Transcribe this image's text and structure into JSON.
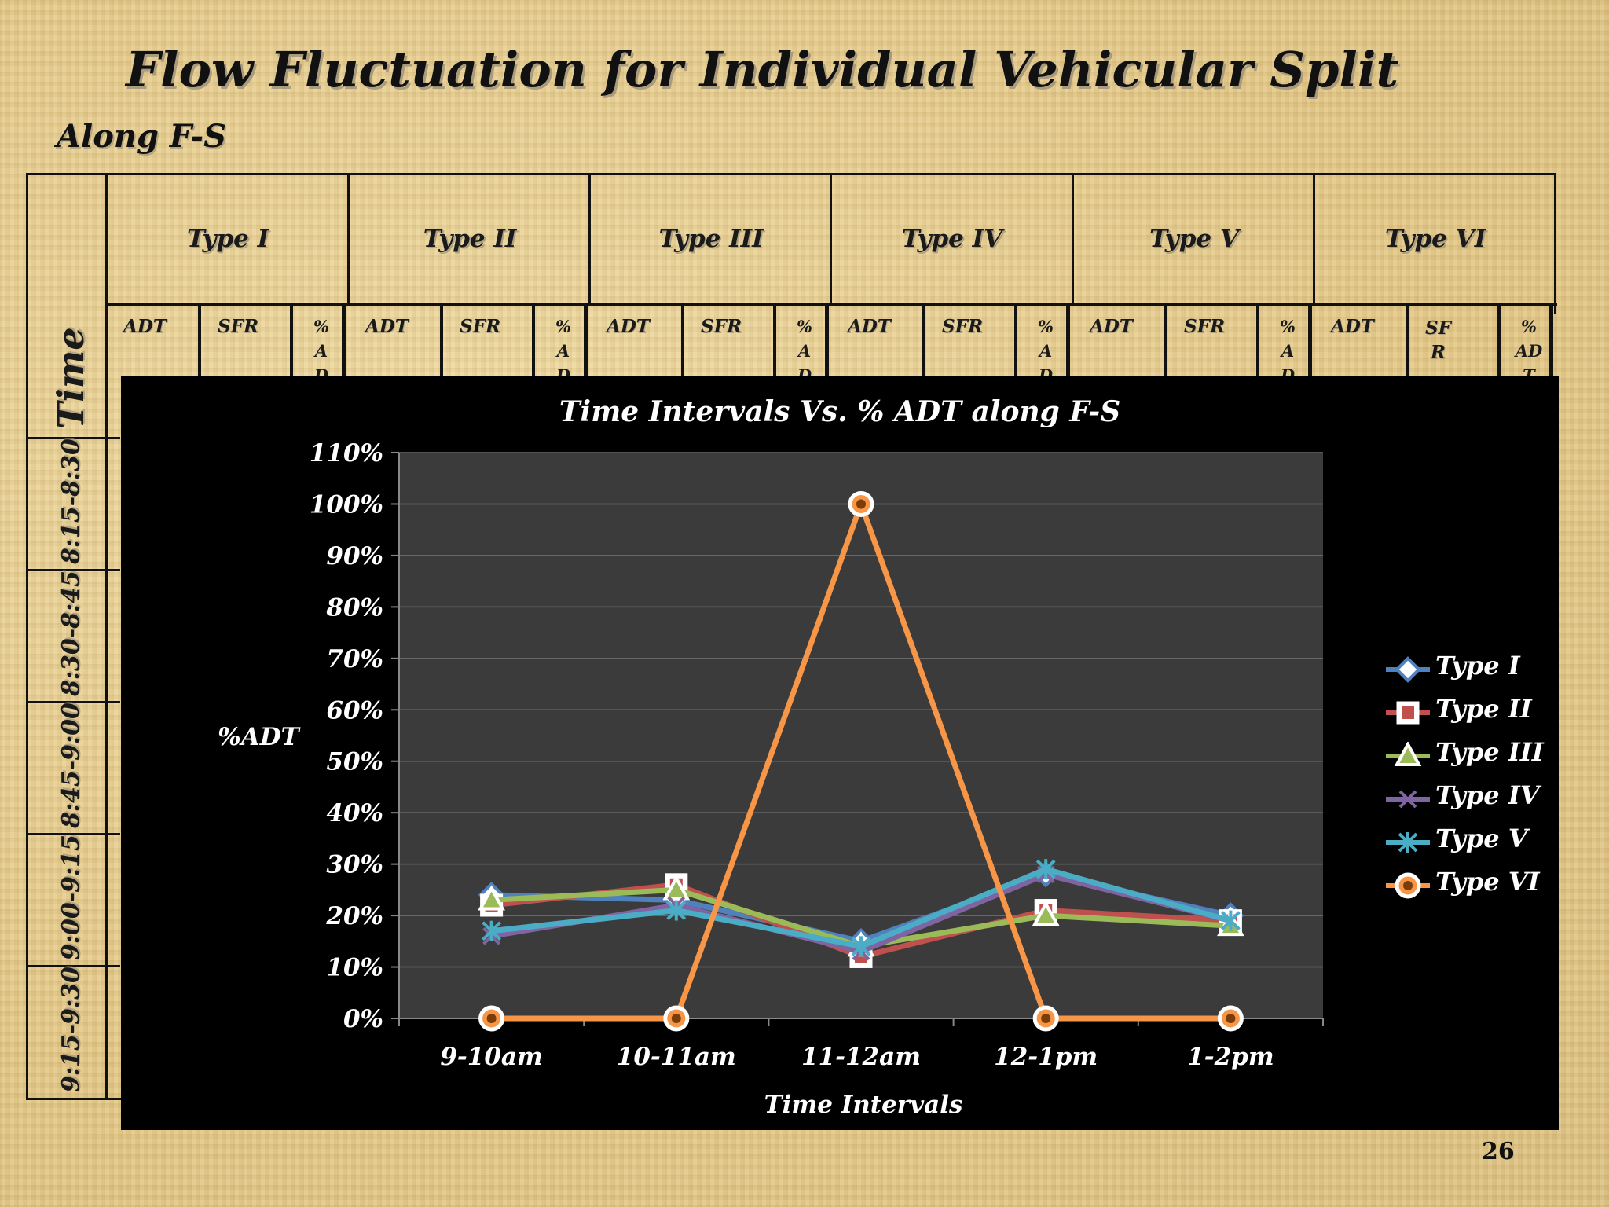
{
  "slide": {
    "title": "Flow Fluctuation for Individual Vehicular Split",
    "subtitle": "Along F-S",
    "page_number": "26"
  },
  "table": {
    "time_header": "Time",
    "type_headers": [
      "Type I",
      "Type II",
      "Type III",
      "Type IV",
      "Type V",
      "Type VI"
    ],
    "sub_headers": [
      "ADT",
      "SFR",
      "%\nA\nD",
      "ADT",
      "SFR",
      "%\nA\nD",
      "ADT",
      "SFR",
      "%\nA\nD",
      "ADT",
      "SFR",
      "%\nA\nD",
      "ADT",
      "SFR",
      "%\nA\nD",
      "ADT",
      "SF\nR",
      "%\nAD\nT"
    ],
    "time_rows": [
      "8:15-8:30",
      "8:30-8:45",
      "8:45-9:00",
      "9:00-9:15",
      "9:15-9:30"
    ]
  },
  "chart_data": {
    "type": "line",
    "title": "Time Intervals Vs. % ADT along F-S",
    "xlabel": "Time Intervals",
    "ylabel": "%ADT",
    "categories": [
      "9-10am",
      "10-11am",
      "11-12am",
      "12-1pm",
      "1-2pm"
    ],
    "ylim": [
      0,
      110
    ],
    "yticks": [
      "0%",
      "10%",
      "20%",
      "30%",
      "40%",
      "50%",
      "60%",
      "70%",
      "80%",
      "90%",
      "100%",
      "110%"
    ],
    "grid": true,
    "legend_position": "right",
    "plot_background": "#3b3b3b",
    "series": [
      {
        "name": "Type I",
        "values": [
          24,
          23,
          15,
          28,
          20
        ],
        "color": "#4f81bd",
        "marker": "diamond"
      },
      {
        "name": "Type II",
        "values": [
          22,
          26,
          12,
          21,
          19
        ],
        "color": "#c0504d",
        "marker": "square"
      },
      {
        "name": "Type III",
        "values": [
          23,
          25,
          14,
          20,
          18
        ],
        "color": "#9bbb59",
        "marker": "triangle"
      },
      {
        "name": "Type IV",
        "values": [
          16,
          22,
          13,
          28,
          19
        ],
        "color": "#8064a2",
        "marker": "x"
      },
      {
        "name": "Type V",
        "values": [
          17,
          21,
          14,
          29,
          19
        ],
        "color": "#4bacc6",
        "marker": "star"
      },
      {
        "name": "Type VI",
        "values": [
          0,
          0,
          100,
          0,
          0
        ],
        "color": "#f79646",
        "marker": "circle"
      }
    ]
  }
}
